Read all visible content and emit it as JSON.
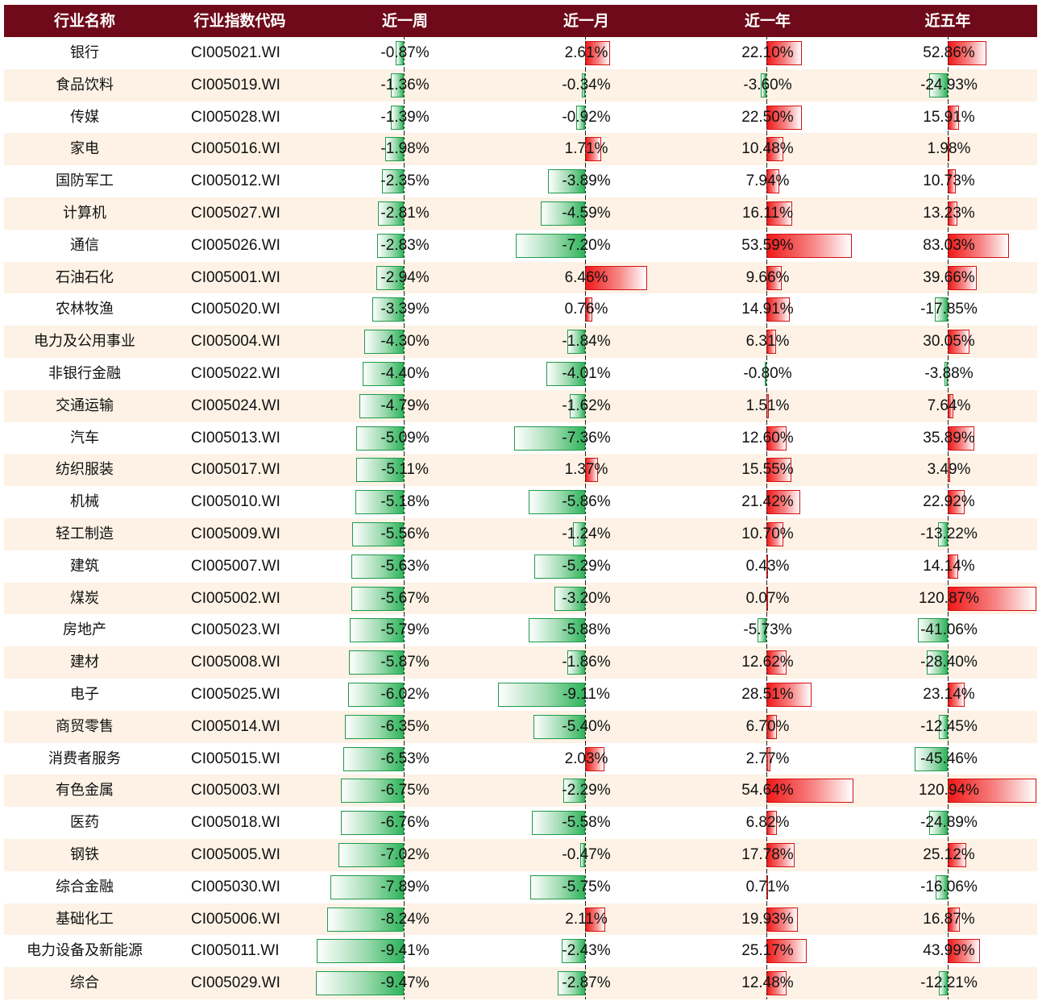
{
  "chart_data": {
    "type": "table",
    "columns": [
      "行业名称",
      "行业指数代码",
      "近一周",
      "近一月",
      "近一年",
      "近五年"
    ],
    "rows": [
      {
        "name": "银行",
        "code": "CI005021.WI",
        "values": [
          -0.87,
          2.61,
          22.1,
          52.86
        ]
      },
      {
        "name": "食品饮料",
        "code": "CI005019.WI",
        "values": [
          -1.36,
          -0.34,
          -3.6,
          -24.93
        ]
      },
      {
        "name": "传媒",
        "code": "CI005028.WI",
        "values": [
          -1.39,
          -0.92,
          22.5,
          15.91
        ]
      },
      {
        "name": "家电",
        "code": "CI005016.WI",
        "values": [
          -1.98,
          1.71,
          10.48,
          1.98
        ]
      },
      {
        "name": "国防军工",
        "code": "CI005012.WI",
        "values": [
          -2.35,
          -3.89,
          7.94,
          10.73
        ]
      },
      {
        "name": "计算机",
        "code": "CI005027.WI",
        "values": [
          -2.81,
          -4.59,
          16.11,
          13.23
        ]
      },
      {
        "name": "通信",
        "code": "CI005026.WI",
        "values": [
          -2.83,
          -7.2,
          53.59,
          83.03
        ]
      },
      {
        "name": "石油石化",
        "code": "CI005001.WI",
        "values": [
          -2.94,
          6.46,
          9.66,
          39.66
        ]
      },
      {
        "name": "农林牧渔",
        "code": "CI005020.WI",
        "values": [
          -3.39,
          0.76,
          14.91,
          -17.85
        ]
      },
      {
        "name": "电力及公用事业",
        "code": "CI005004.WI",
        "values": [
          -4.3,
          -1.84,
          6.31,
          30.05
        ]
      },
      {
        "name": "非银行金融",
        "code": "CI005022.WI",
        "values": [
          -4.4,
          -4.01,
          -0.8,
          -3.88
        ]
      },
      {
        "name": "交通运输",
        "code": "CI005024.WI",
        "values": [
          -4.79,
          -1.62,
          1.51,
          7.64
        ]
      },
      {
        "name": "汽车",
        "code": "CI005013.WI",
        "values": [
          -5.09,
          -7.36,
          12.6,
          35.89
        ]
      },
      {
        "name": "纺织服装",
        "code": "CI005017.WI",
        "values": [
          -5.11,
          1.37,
          15.55,
          3.49
        ]
      },
      {
        "name": "机械",
        "code": "CI005010.WI",
        "values": [
          -5.18,
          -5.86,
          21.42,
          22.92
        ]
      },
      {
        "name": "轻工制造",
        "code": "CI005009.WI",
        "values": [
          -5.56,
          -1.24,
          10.7,
          -13.22
        ]
      },
      {
        "name": "建筑",
        "code": "CI005007.WI",
        "values": [
          -5.63,
          -5.29,
          0.43,
          14.14
        ]
      },
      {
        "name": "煤炭",
        "code": "CI005002.WI",
        "values": [
          -5.67,
          -3.2,
          0.07,
          120.87
        ]
      },
      {
        "name": "房地产",
        "code": "CI005023.WI",
        "values": [
          -5.79,
          -5.88,
          -5.73,
          -41.06
        ]
      },
      {
        "name": "建材",
        "code": "CI005008.WI",
        "values": [
          -5.87,
          -1.86,
          12.62,
          -28.4
        ]
      },
      {
        "name": "电子",
        "code": "CI005025.WI",
        "values": [
          -6.02,
          -9.11,
          28.51,
          23.14
        ]
      },
      {
        "name": "商贸零售",
        "code": "CI005014.WI",
        "values": [
          -6.35,
          -5.4,
          6.7,
          -12.45
        ]
      },
      {
        "name": "消费者服务",
        "code": "CI005015.WI",
        "values": [
          -6.53,
          2.03,
          2.77,
          -45.46
        ]
      },
      {
        "name": "有色金属",
        "code": "CI005003.WI",
        "values": [
          -6.75,
          -2.29,
          54.64,
          120.94
        ]
      },
      {
        "name": "医药",
        "code": "CI005018.WI",
        "values": [
          -6.76,
          -5.58,
          6.82,
          -24.89
        ]
      },
      {
        "name": "钢铁",
        "code": "CI005005.WI",
        "values": [
          -7.02,
          -0.47,
          17.78,
          25.12
        ]
      },
      {
        "name": "综合金融",
        "code": "CI005030.WI",
        "values": [
          -7.89,
          -5.75,
          0.71,
          -16.06
        ]
      },
      {
        "name": "基础化工",
        "code": "CI005006.WI",
        "values": [
          -8.24,
          2.11,
          19.93,
          16.87
        ]
      },
      {
        "name": "电力设备及新能源",
        "code": "CI005011.WI",
        "values": [
          -9.41,
          -2.43,
          25.17,
          43.99
        ]
      },
      {
        "name": "综合",
        "code": "CI005029.WI",
        "values": [
          -9.47,
          -2.87,
          12.48,
          -12.21
        ]
      }
    ]
  },
  "colors": {
    "header_bg": "#6e0a1a",
    "row_alt_bg": "#fdf2e5",
    "negative_bar": "#2fb45b",
    "positive_bar": "#f01818"
  }
}
